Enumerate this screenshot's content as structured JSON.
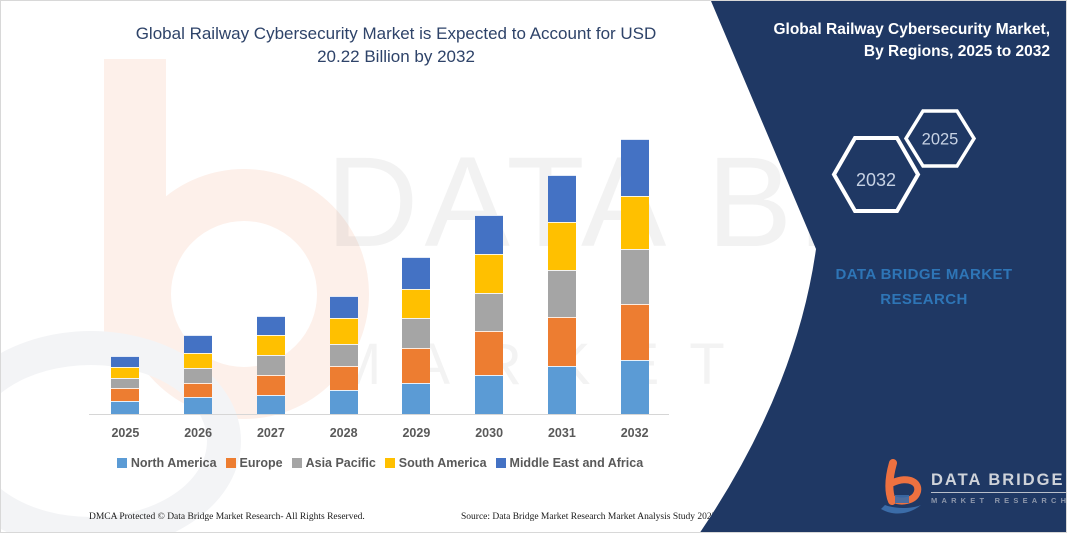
{
  "header": {
    "title_line1": "Global Railway Cybersecurity Market is Expected to Account for USD",
    "title_line2": "20.22 Billion by 2032"
  },
  "chart_data": {
    "type": "bar",
    "stacked": true,
    "title": "Global Railway Cybersecurity Market is Expected to Account for USD 20.22 Billion by 2032",
    "unit": "USD Billion",
    "categories": [
      "2025",
      "2026",
      "2027",
      "2028",
      "2029",
      "2030",
      "2031",
      "2032"
    ],
    "series": [
      {
        "name": "North America",
        "color": "#5b9bd5",
        "values": [
          0.96,
          1.25,
          1.4,
          1.79,
          2.28,
          2.85,
          3.56,
          4.0
        ]
      },
      {
        "name": "Europe",
        "color": "#ed7d31",
        "values": [
          0.92,
          1.03,
          1.47,
          1.72,
          2.58,
          3.24,
          3.56,
          4.06
        ]
      },
      {
        "name": "Asia Pacific",
        "color": "#a5a5a5",
        "values": [
          0.79,
          1.11,
          1.47,
          1.64,
          2.21,
          2.82,
          3.51,
          4.05
        ]
      },
      {
        "name": "South America",
        "color": "#ffc000",
        "values": [
          0.79,
          1.11,
          1.47,
          1.92,
          2.14,
          2.82,
          3.49,
          3.93
        ]
      },
      {
        "name": "Middle East and Africa",
        "color": "#4472c4",
        "values": [
          0.81,
          1.28,
          1.4,
          1.6,
          2.36,
          2.87,
          3.49,
          4.18
        ]
      }
    ],
    "totals": [
      4.27,
      5.78,
      7.21,
      8.67,
      11.57,
      14.6,
      17.61,
      20.22
    ],
    "ylim": [
      0,
      21
    ],
    "grid": false,
    "legend_position": "bottom"
  },
  "side_panel": {
    "title_line1": "Global Railway Cybersecurity Market,",
    "title_line2": "By Regions, 2025 to 2032",
    "hexagon_back_label": "2025",
    "hexagon_front_label": "2032",
    "brand_line1": "DATA BRIDGE MARKET",
    "brand_line2": "RESEARCH",
    "background_color": "#1f3864",
    "accent_text_color": "#2e75b6"
  },
  "logo": {
    "name": "DATA BRIDGE",
    "subtitle": "MARKET RESEARCH",
    "icon_orange": "#ed7140",
    "icon_blue": "#3b6ca8"
  },
  "watermark": {
    "line1": "DATA BRIDGE",
    "line2": "MARKET RESEARCH"
  },
  "footer": {
    "left": "DMCA Protected © Data Bridge Market Research-  All Rights Reserved.",
    "right": "Source: Data Bridge Market Research  Market Analysis Study 2025"
  }
}
